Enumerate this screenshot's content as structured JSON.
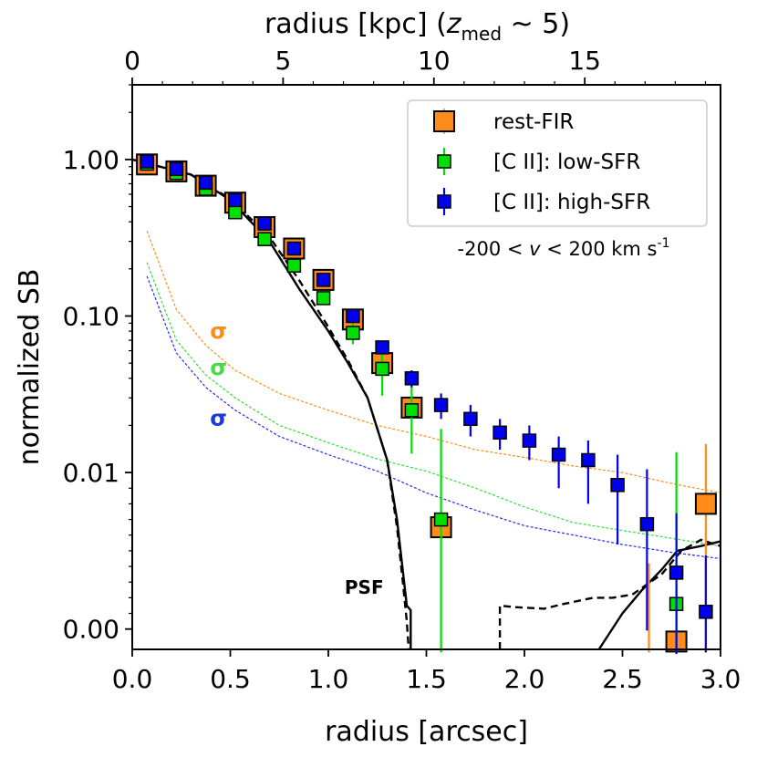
{
  "chart_data": {
    "type": "scatter",
    "title": "",
    "xlabel": "radius [arcsec]",
    "ylabel": "normalized SB",
    "top_xlabel": {
      "pre": "radius [kpc] (",
      "z": "z",
      "sub": "med",
      "post": " ~ 5)"
    },
    "xlim": [
      0,
      3.0
    ],
    "y_scale": "symlog",
    "y_linthresh": 0.01,
    "ylim_display": [
      -0.0013,
      3.0
    ],
    "x_ticks": [
      0.0,
      0.5,
      1.0,
      1.5,
      2.0,
      2.5,
      3.0
    ],
    "x_tick_labels": [
      "0.0",
      "0.5",
      "1.0",
      "1.5",
      "2.0",
      "2.5",
      "3.0"
    ],
    "top_x_ticks_kpc": [
      0,
      5,
      10,
      15
    ],
    "top_x_tick_labels": [
      "0",
      "5",
      "10",
      "15"
    ],
    "kpc_per_arcsec": 6.5,
    "y_ticks": [
      0.0,
      0.01,
      0.1,
      1.0
    ],
    "y_tick_labels": [
      "0.00",
      "0.01",
      "0.10",
      "1.00"
    ],
    "series": [
      {
        "name": "rest-FIR",
        "color": "#ff8c1a",
        "marker": "square-large",
        "x": [
          0.075,
          0.225,
          0.375,
          0.525,
          0.675,
          0.825,
          0.975,
          1.125,
          1.275,
          1.425,
          1.575,
          2.775,
          2.925
        ],
        "y": [
          0.93,
          0.84,
          0.68,
          0.53,
          0.37,
          0.27,
          0.17,
          0.095,
          0.05,
          0.026,
          0.0065,
          -0.0008,
          0.008
        ],
        "err_low": [
          0.0,
          0.0,
          0.0,
          0.0,
          0.0,
          0.0,
          0.0,
          0.0,
          0.0,
          0.0,
          0.0,
          0.0,
          0.0
        ],
        "err_high": [
          0.0,
          0.0,
          0.0,
          0.0,
          0.0,
          0.0,
          0.0,
          0.0,
          0.0,
          0.0,
          0.0,
          0.0,
          0.0
        ],
        "extra_err": [
          [
            2.635,
            -0.0015,
            0.0042
          ],
          [
            2.925,
            -0.0015,
            0.0152
          ]
        ]
      },
      {
        "name": "[C II]: low-SFR",
        "color": "#00e000",
        "marker": "square-small",
        "x": [
          0.075,
          0.225,
          0.375,
          0.525,
          0.675,
          0.825,
          0.975,
          1.125,
          1.275,
          1.425,
          1.575,
          2.775
        ],
        "y": [
          0.94,
          0.82,
          0.65,
          0.46,
          0.31,
          0.21,
          0.13,
          0.078,
          0.046,
          0.025,
          0.007,
          0.0016
        ],
        "err_low": [
          0.02,
          0.02,
          0.03,
          0.02,
          0.02,
          0.01,
          0.01,
          0.012,
          0.015,
          0.0118,
          0.0085,
          0.0031
        ],
        "err_high": [
          0.02,
          0.02,
          0.03,
          0.02,
          0.02,
          0.01,
          0.01,
          0.012,
          0.015,
          0.0118,
          0.012,
          0.0119
        ]
      },
      {
        "name": "[C II]: high-SFR",
        "color": "#0000ee",
        "marker": "square-small",
        "x": [
          0.075,
          0.225,
          0.375,
          0.525,
          0.675,
          0.825,
          0.975,
          1.125,
          1.275,
          1.425,
          1.575,
          1.725,
          1.875,
          2.025,
          2.175,
          2.325,
          2.475,
          2.625,
          2.775,
          2.925
        ],
        "y": [
          0.97,
          0.87,
          0.71,
          0.55,
          0.39,
          0.27,
          0.17,
          0.1,
          0.063,
          0.04,
          0.027,
          0.022,
          0.018,
          0.016,
          0.013,
          0.012,
          0.0092,
          0.0067,
          0.0036,
          0.0011
        ],
        "err_low": [
          0.02,
          0.02,
          0.02,
          0.02,
          0.02,
          0.01,
          0.01,
          0.006,
          0.005,
          0.005,
          0.005,
          0.005,
          0.004,
          0.004,
          0.004,
          0.004,
          0.0038,
          0.0068,
          0.0052,
          0.0026
        ],
        "err_high": [
          0.02,
          0.02,
          0.02,
          0.02,
          0.02,
          0.01,
          0.01,
          0.006,
          0.005,
          0.005,
          0.005,
          0.005,
          0.004,
          0.004,
          0.004,
          0.004,
          0.0038,
          0.0038,
          0.0038,
          0.0036
        ]
      }
    ],
    "psf": {
      "name": "PSF",
      "solid": {
        "x": [
          0.0,
          0.3,
          0.5,
          0.7,
          0.85,
          1.0,
          1.1,
          1.2,
          1.3,
          1.35,
          1.4,
          1.42,
          1.42
        ],
        "y": [
          1.0,
          0.8,
          0.55,
          0.3,
          0.15,
          0.08,
          0.05,
          0.03,
          0.012,
          0.007,
          0.0015,
          0.0012,
          -0.0013
        ]
      },
      "solid_tail": {
        "x": [
          2.38,
          2.5,
          2.6,
          2.7,
          2.78,
          2.9,
          3.0
        ],
        "y": [
          -0.0013,
          0.001,
          0.0025,
          0.0038,
          0.005,
          0.0053,
          0.0056
        ]
      },
      "dashed": {
        "x": [
          0.0,
          0.3,
          0.5,
          0.7,
          0.85,
          1.0,
          1.1,
          1.2,
          1.3,
          1.35,
          1.38,
          1.4,
          1.41
        ],
        "y": [
          1.0,
          0.8,
          0.56,
          0.32,
          0.17,
          0.085,
          0.052,
          0.03,
          0.012,
          0.0065,
          0.003,
          0.0005,
          -0.0013
        ]
      },
      "dashed_tail": {
        "x": [
          1.875,
          1.875,
          1.95,
          2.1,
          2.2,
          2.35,
          2.45,
          2.55,
          2.7,
          2.8,
          2.9,
          3.0
        ],
        "y": [
          -0.0013,
          0.0015,
          0.0014,
          0.0013,
          0.0016,
          0.002,
          0.002,
          0.0022,
          0.0035,
          0.005,
          0.0057,
          0.0053
        ]
      }
    },
    "sigma_curves": [
      {
        "color": "#ff8c1a",
        "x": [
          0.075,
          0.225,
          0.375,
          0.525,
          0.75,
          1.0,
          1.25,
          1.5,
          1.75,
          2.0,
          2.25,
          2.5,
          2.75,
          3.0
        ],
        "y": [
          0.35,
          0.11,
          0.065,
          0.045,
          0.032,
          0.025,
          0.02,
          0.017,
          0.014,
          0.0125,
          0.011,
          0.01,
          0.0093,
          0.0087
        ]
      },
      {
        "color": "#33dd33",
        "x": [
          0.075,
          0.225,
          0.375,
          0.525,
          0.75,
          1.0,
          1.25,
          1.5,
          1.75,
          2.0,
          2.25,
          2.5,
          2.75,
          3.0
        ],
        "y": [
          0.22,
          0.07,
          0.042,
          0.03,
          0.02,
          0.0155,
          0.0122,
          0.0102,
          0.009,
          0.0078,
          0.0068,
          0.0063,
          0.0058,
          0.0053
        ]
      },
      {
        "color": "#2a2aee",
        "x": [
          0.075,
          0.225,
          0.375,
          0.525,
          0.75,
          1.0,
          1.25,
          1.5,
          1.75,
          2.0,
          2.25,
          2.5,
          2.75,
          3.0
        ],
        "y": [
          0.18,
          0.058,
          0.035,
          0.025,
          0.017,
          0.013,
          0.0102,
          0.0087,
          0.0076,
          0.0066,
          0.006,
          0.0054,
          0.0049,
          0.0045
        ]
      }
    ],
    "sigma_labels": [
      {
        "text": "σ",
        "color": "#ff8c1a",
        "x": 0.44,
        "y": 0.072
      },
      {
        "text": "σ",
        "color": "#44dd44",
        "x": 0.44,
        "y": 0.042
      },
      {
        "text": "σ",
        "color": "#1a3ae0",
        "x": 0.44,
        "y": 0.02
      }
    ],
    "annotations": [
      {
        "text": "PSF",
        "x": 1.26,
        "y": 0.0026
      },
      {
        "velocity": {
          "pre": "-200 < ",
          "v": "v",
          "post": " < 200 km s",
          "exp": "-1"
        }
      }
    ],
    "legend": {
      "location": "top-right",
      "entries": [
        "rest-FIR",
        "[C II]: low-SFR",
        "[C II]: high-SFR"
      ]
    }
  }
}
